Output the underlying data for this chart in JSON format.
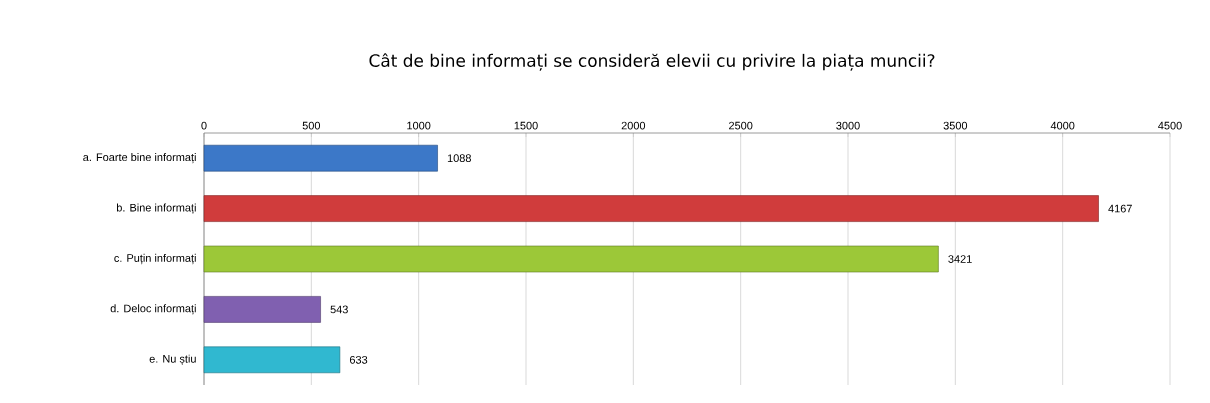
{
  "chart_data": {
    "type": "bar",
    "orientation": "horizontal",
    "title": "Cât de bine informați se consideră elevii cu privire la piața muncii?",
    "categories": [
      "a. Foarte bine informați",
      "b. Bine informați",
      "c. Puțin informați",
      "d. Deloc informați",
      "e. Nu știu"
    ],
    "values": [
      1088,
      4167,
      3421,
      543,
      633
    ],
    "colors": [
      "#3c78c8",
      "#d03c3c",
      "#9cc838",
      "#8060b0",
      "#30b8d0"
    ],
    "xlim": [
      0,
      4500
    ],
    "xticks": [
      0,
      500,
      1000,
      1500,
      2000,
      2500,
      3000,
      3500,
      4000,
      4500
    ],
    "grid": "x",
    "data_labels": true
  }
}
